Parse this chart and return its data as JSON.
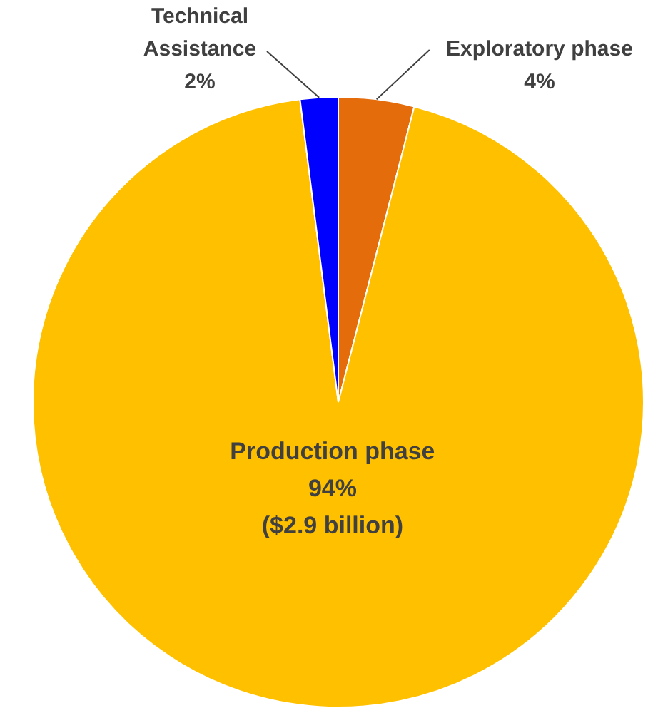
{
  "chart_data": {
    "type": "pie",
    "categories": [
      "Exploratory phase",
      "Production phase",
      "Technical Assistance"
    ],
    "values": [
      4,
      94,
      2
    ],
    "value_labels": [
      "4%",
      "94%",
      "2%"
    ],
    "colors": [
      "#e46c0a",
      "#ffc000",
      "#0000ff"
    ],
    "annotations": [
      "($2.9 billion)"
    ]
  }
}
